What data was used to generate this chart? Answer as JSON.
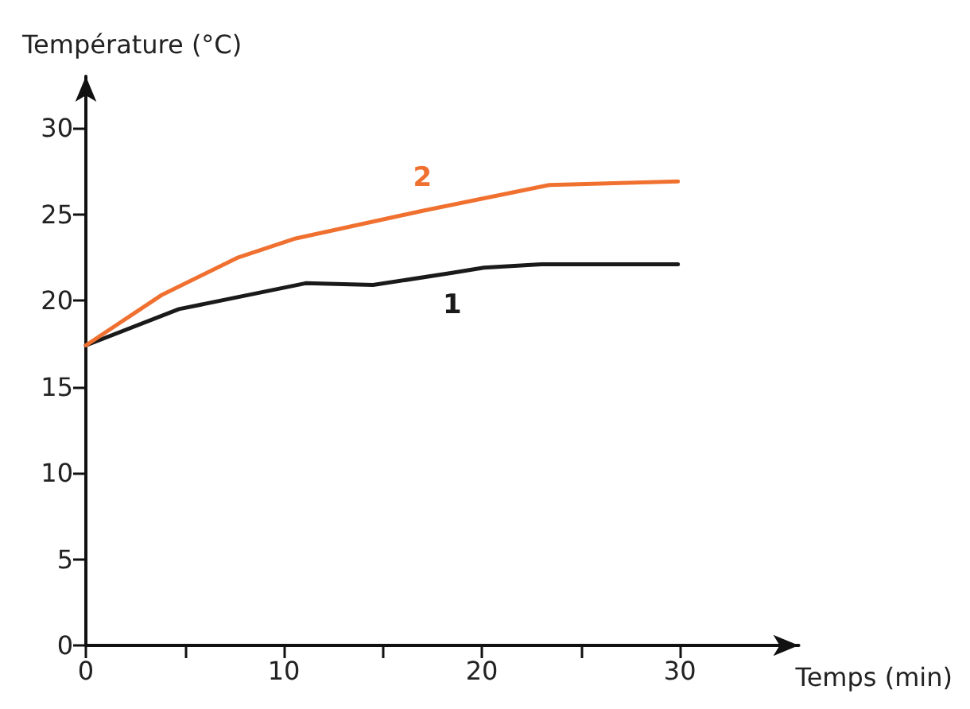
{
  "chart_data": {
    "type": "line",
    "xlabel": "Temps (min)",
    "ylabel": "Température (°C)",
    "xlim": [
      0,
      36
    ],
    "ylim": [
      0,
      33
    ],
    "xticks": [
      0,
      {
        "value": 5,
        "label": null
      },
      10,
      {
        "value": 15,
        "label": null
      },
      20,
      {
        "value": 25,
        "label": null
      },
      30
    ],
    "yticks": [
      0,
      5,
      10,
      15,
      20,
      25,
      30
    ],
    "grid": false,
    "legend": false,
    "marker": "none",
    "line_style": "solid",
    "series": [
      {
        "name": "1",
        "color": "#1a1a1a",
        "x": [
          0,
          4.7,
          11.1,
          14.5,
          18.5,
          20.1,
          23.0,
          29.9
        ],
        "values": [
          17.4,
          19.5,
          21.0,
          20.9,
          21.6,
          21.9,
          22.1,
          22.1
        ]
      },
      {
        "name": "2",
        "color": "#f07030",
        "x": [
          0,
          3.8,
          7.7,
          10.6,
          17.0,
          20.0,
          23.4,
          29.9
        ],
        "values": [
          17.4,
          20.3,
          22.5,
          23.6,
          25.2,
          25.9,
          26.7,
          26.9
        ]
      }
    ]
  }
}
